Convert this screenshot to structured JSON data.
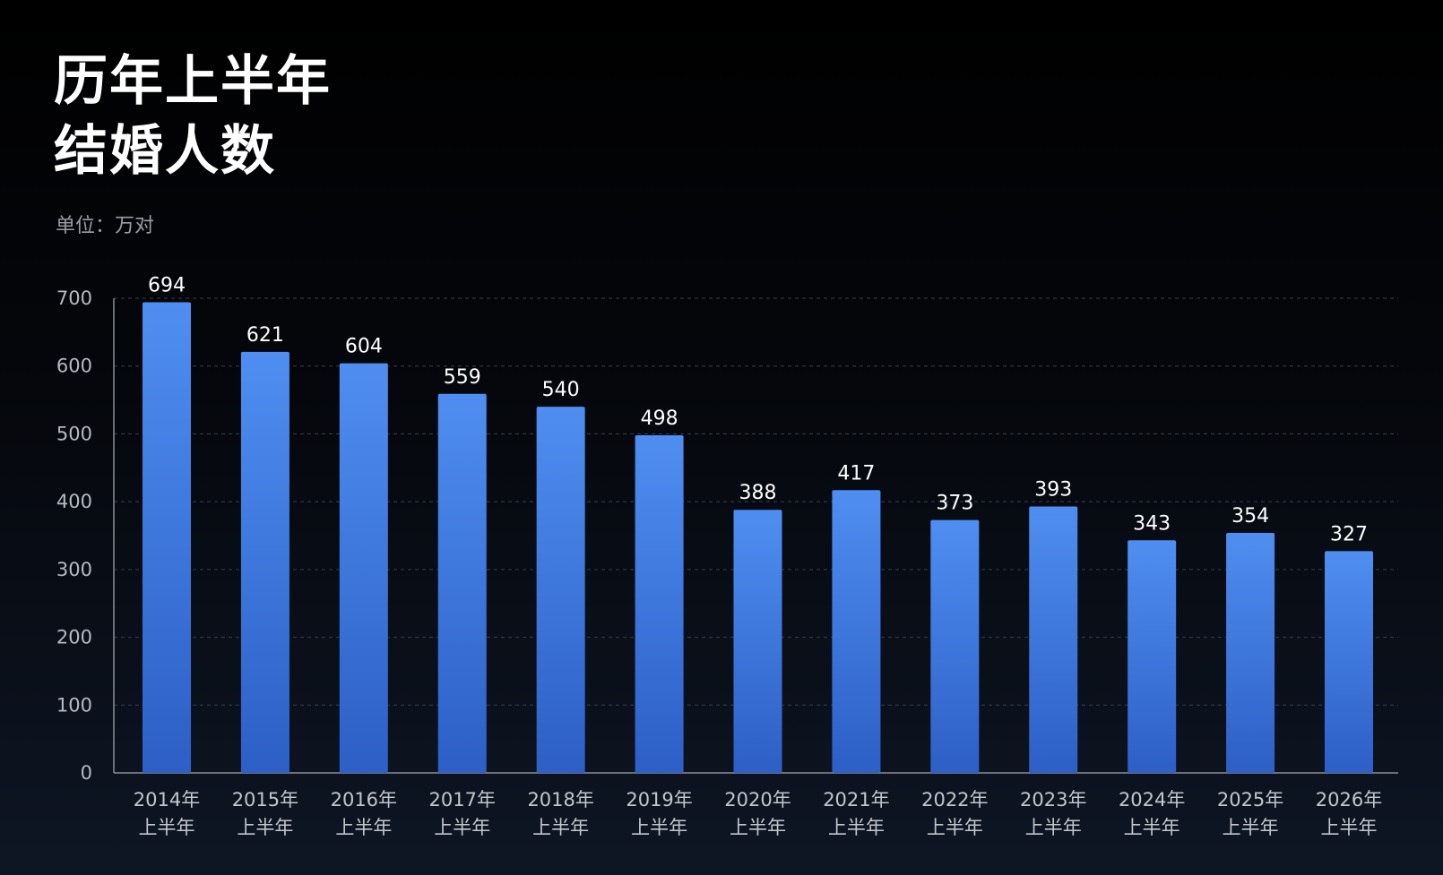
{
  "title": {
    "line1": "历年上半年",
    "line2": "结婚人数"
  },
  "unit_label": "单位：万对",
  "chart_data": {
    "type": "bar",
    "title": "历年上半年结婚人数",
    "ylabel": "单位：万对",
    "xlabel": "",
    "ylim": [
      0,
      700
    ],
    "yticks": [
      "0",
      "100",
      "200",
      "300",
      "400",
      "500",
      "600",
      "700"
    ],
    "grid": true,
    "categories": [
      [
        "2014年",
        "上半年"
      ],
      [
        "2015年",
        "上半年"
      ],
      [
        "2016年",
        "上半年"
      ],
      [
        "2017年",
        "上半年"
      ],
      [
        "2018年",
        "上半年"
      ],
      [
        "2019年",
        "上半年"
      ],
      [
        "2020年",
        "上半年"
      ],
      [
        "2021年",
        "上半年"
      ],
      [
        "2022年",
        "上半年"
      ],
      [
        "2023年",
        "上半年"
      ],
      [
        "2024年",
        "上半年"
      ],
      [
        "2025年",
        "上半年"
      ],
      [
        "2026年",
        "上半年"
      ]
    ],
    "values": [
      694,
      621,
      604,
      559,
      540,
      498,
      388,
      417,
      373,
      393,
      343,
      354,
      327
    ],
    "bar_color_top": "#4f8ef0",
    "bar_color_bottom": "#2d5fc6"
  }
}
